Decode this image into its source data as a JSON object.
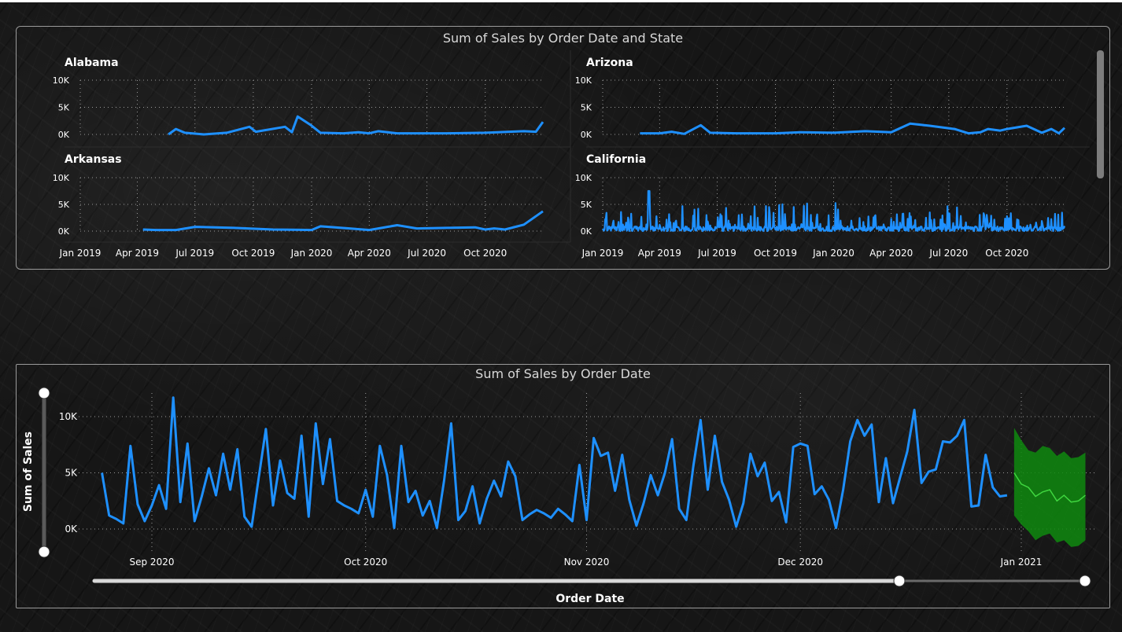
{
  "top_chart_title": "Sum of Sales by Order Date and State",
  "bottom_chart_title": "Sum of Sales by Order Date",
  "colors": {
    "line": "#1e90ff",
    "forecast_line": "#3fd63f",
    "forecast_band": "#0f8a0f",
    "grid": "#9a9a9a",
    "axis_text": "#ffffff"
  },
  "chart_data": [
    {
      "type": "line",
      "title": "Sum of Sales by Order Date and State",
      "small_multiples": true,
      "x_tick_labels": [
        "Jan 2019",
        "Apr 2019",
        "Jul 2019",
        "Oct 2019",
        "Jan 2020",
        "Apr 2020",
        "Jul 2020",
        "Oct 2020"
      ],
      "y_tick_labels": [
        "10K",
        "5K",
        "0K"
      ],
      "ylim": [
        0,
        12000
      ],
      "xlim": [
        "2019-01-01",
        "2020-12-31"
      ],
      "grid": true,
      "panels": [
        {
          "state": "Alabama",
          "points": [
            [
              "2019-05-20",
              0
            ],
            [
              "2019-06-01",
              1000
            ],
            [
              "2019-06-15",
              300
            ],
            [
              "2019-07-15",
              0
            ],
            [
              "2019-08-20",
              300
            ],
            [
              "2019-09-25",
              1400
            ],
            [
              "2019-10-05",
              500
            ],
            [
              "2019-11-20",
              1400
            ],
            [
              "2019-12-01",
              400
            ],
            [
              "2019-12-10",
              3300
            ],
            [
              "2019-12-31",
              1700
            ],
            [
              "2020-01-15",
              300
            ],
            [
              "2020-02-20",
              200
            ],
            [
              "2020-03-15",
              400
            ],
            [
              "2020-04-01",
              200
            ],
            [
              "2020-04-15",
              600
            ],
            [
              "2020-05-15",
              200
            ],
            [
              "2020-08-01",
              200
            ],
            [
              "2020-10-01",
              300
            ],
            [
              "2020-12-01",
              600
            ],
            [
              "2020-12-20",
              500
            ],
            [
              "2020-12-31",
              2300
            ]
          ]
        },
        {
          "state": "Arizona",
          "points": [
            [
              "2019-03-01",
              200
            ],
            [
              "2019-04-01",
              200
            ],
            [
              "2019-04-20",
              500
            ],
            [
              "2019-05-10",
              100
            ],
            [
              "2019-06-05",
              1700
            ],
            [
              "2019-06-20",
              300
            ],
            [
              "2019-08-01",
              200
            ],
            [
              "2019-10-01",
              200
            ],
            [
              "2019-11-10",
              400
            ],
            [
              "2020-01-01",
              300
            ],
            [
              "2020-02-20",
              600
            ],
            [
              "2020-04-01",
              400
            ],
            [
              "2020-05-01",
              2000
            ],
            [
              "2020-06-01",
              1600
            ],
            [
              "2020-07-10",
              1000
            ],
            [
              "2020-08-01",
              200
            ],
            [
              "2020-08-20",
              400
            ],
            [
              "2020-09-01",
              1000
            ],
            [
              "2020-09-20",
              700
            ],
            [
              "2020-10-01",
              1000
            ],
            [
              "2020-11-01",
              1600
            ],
            [
              "2020-11-25",
              300
            ],
            [
              "2020-12-10",
              1000
            ],
            [
              "2020-12-22",
              200
            ],
            [
              "2020-12-31",
              1200
            ]
          ]
        },
        {
          "state": "Arkansas",
          "points": [
            [
              "2019-04-10",
              300
            ],
            [
              "2019-05-01",
              200
            ],
            [
              "2019-06-01",
              200
            ],
            [
              "2019-07-01",
              800
            ],
            [
              "2019-09-01",
              600
            ],
            [
              "2019-11-01",
              300
            ],
            [
              "2020-01-01",
              200
            ],
            [
              "2020-01-15",
              900
            ],
            [
              "2020-03-01",
              500
            ],
            [
              "2020-04-01",
              200
            ],
            [
              "2020-05-15",
              1100
            ],
            [
              "2020-06-15",
              500
            ],
            [
              "2020-08-01",
              600
            ],
            [
              "2020-09-15",
              700
            ],
            [
              "2020-10-01",
              300
            ],
            [
              "2020-10-15",
              500
            ],
            [
              "2020-11-01",
              300
            ],
            [
              "2020-12-01",
              1200
            ],
            [
              "2020-12-31",
              3700
            ]
          ]
        },
        {
          "state": "California",
          "points": []
        }
      ]
    },
    {
      "type": "line",
      "title": "Sum of Sales by Order Date",
      "xlabel": "Order Date",
      "ylabel": "Sum of Sales",
      "x_tick_labels": [
        "Sep 2020",
        "Oct 2020",
        "Nov 2020",
        "Dec 2020",
        "Jan 2021"
      ],
      "y_tick_labels": [
        "10K",
        "5K",
        "0K"
      ],
      "ylim": [
        -1700,
        12000
      ],
      "grid": true,
      "forecast": true,
      "sales_daily_from_2020-08-25": [
        5000,
        1200,
        900,
        500,
        7400,
        2200,
        700,
        2100,
        3900,
        1800,
        11700,
        2400,
        7600,
        700,
        2900,
        5400,
        3000,
        6700,
        3500,
        7100,
        1100,
        200,
        4600,
        8900,
        2100,
        6100,
        3200,
        2700,
        8300,
        1100,
        9400,
        4000,
        8000,
        2500,
        2100,
        1800,
        1400,
        3500,
        1100,
        7400,
        4800,
        100,
        7400,
        2400,
        3400,
        1200,
        2500,
        100,
        4300,
        9400,
        800,
        1600,
        3800,
        500,
        2700,
        4300,
        2900,
        6000,
        4700,
        800,
        1300,
        1700,
        1400,
        1000,
        1800,
        1300,
        700,
        5700,
        800,
        8100,
        6500,
        6800,
        3400,
        6600,
        2600,
        300,
        2300,
        4800,
        3000,
        5000,
        8000,
        1800,
        800,
        5700,
        9700,
        3500,
        8300,
        4200,
        2600,
        200,
        2300,
        6700,
        4700,
        5900,
        2500,
        3300,
        600,
        7300,
        7600,
        7400,
        3100,
        3800,
        2600,
        100,
        3500,
        7800,
        9700,
        8300,
        9300,
        2400,
        6300,
        2300,
        4600,
        6900,
        10600,
        4100,
        5100,
        5300,
        7800,
        7700,
        8300,
        9700,
        2000,
        2100,
        6600,
        3700,
        2900,
        3000
      ],
      "forecast_from_2020-12-31": {
        "mid": [
          5000,
          4000,
          3700,
          2900,
          3300,
          3500,
          2500,
          3000,
          2400,
          2500,
          3000
        ],
        "upper": [
          9000,
          7900,
          7000,
          6800,
          7400,
          7200,
          6500,
          6900,
          6300,
          6400,
          6800
        ],
        "lower": [
          1200,
          400,
          -200,
          -1000,
          -600,
          -400,
          -1200,
          -1000,
          -1600,
          -1500,
          -1000
        ]
      }
    }
  ]
}
